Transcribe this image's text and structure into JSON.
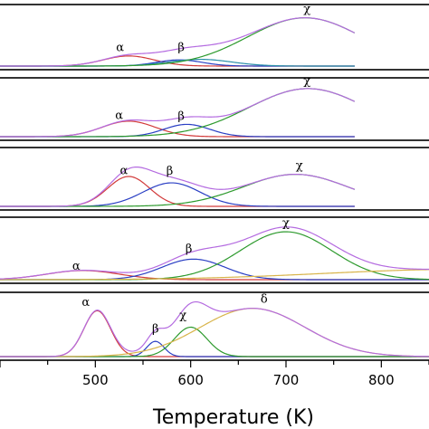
{
  "chart_data": {
    "type": "line",
    "xlabel": "Temperature (K)",
    "xlim": [
      400,
      850
    ],
    "x_ticks": [
      500,
      600,
      700,
      800
    ],
    "colors": {
      "sum": "#b46be0",
      "alpha": "#d23a3a",
      "beta": "#2a3fc4",
      "chi": "#2d9a2d",
      "delta": "#d8b44a",
      "teal": "#2a8fa8"
    },
    "panels": [
      {
        "x_end": 772,
        "components": [
          {
            "name": "α",
            "color_key": "alpha",
            "center": 535,
            "height": 0.18,
            "width": 27
          },
          {
            "name": "β",
            "color_key": "beta",
            "center": 588,
            "height": 0.11,
            "width": 24
          },
          {
            "name": "",
            "color_key": "teal",
            "center": 610,
            "height": 0.12,
            "width": 33
          },
          {
            "name": "χ",
            "color_key": "chi",
            "center": 720,
            "height": 0.86,
            "width": 60
          }
        ],
        "labels": [
          {
            "text": "α",
            "x": 526,
            "y": 0.33
          },
          {
            "text": "β",
            "x": 590,
            "y": 0.33
          },
          {
            "text": "χ",
            "x": 722,
            "y": 1.02
          }
        ]
      },
      {
        "x_end": 772,
        "components": [
          {
            "name": "α",
            "color_key": "alpha",
            "center": 535,
            "height": 0.29,
            "width": 28
          },
          {
            "name": "β",
            "color_key": "beta",
            "center": 596,
            "height": 0.23,
            "width": 24
          },
          {
            "name": "χ",
            "color_key": "chi",
            "center": 723,
            "height": 0.9,
            "width": 62
          }
        ],
        "labels": [
          {
            "text": "α",
            "x": 525,
            "y": 0.4
          },
          {
            "text": "β",
            "x": 590,
            "y": 0.38
          },
          {
            "text": "χ",
            "x": 722,
            "y": 1.04
          }
        ]
      },
      {
        "x_end": 772,
        "components": [
          {
            "name": "α",
            "color_key": "alpha",
            "center": 535,
            "height": 0.56,
            "width": 22
          },
          {
            "name": "β",
            "color_key": "beta",
            "center": 580,
            "height": 0.44,
            "width": 30
          },
          {
            "name": "χ",
            "color_key": "chi",
            "center": 710,
            "height": 0.6,
            "width": 55
          }
        ],
        "labels": [
          {
            "text": "α",
            "x": 530,
            "y": 0.67
          },
          {
            "text": "β",
            "x": 578,
            "y": 0.66
          },
          {
            "text": "χ",
            "x": 714,
            "y": 0.76
          }
        ]
      },
      {
        "x_end": 850,
        "components": [
          {
            "name": "α",
            "color_key": "alpha",
            "center": 487,
            "height": 0.16,
            "width": 38
          },
          {
            "name": "β",
            "color_key": "beta",
            "center": 603,
            "height": 0.36,
            "width": 33
          },
          {
            "name": "χ",
            "color_key": "chi",
            "center": 700,
            "height": 0.84,
            "width": 48
          },
          {
            "name": "",
            "color_key": "delta",
            "center": 880,
            "height": 0.18,
            "width": 140
          }
        ],
        "labels": [
          {
            "text": "α",
            "x": 480,
            "y": 0.24
          },
          {
            "text": "β",
            "x": 598,
            "y": 0.54
          },
          {
            "text": "χ",
            "x": 700,
            "y": 0.99
          }
        ]
      },
      {
        "x_end": 850,
        "components": [
          {
            "name": "α",
            "color_key": "alpha",
            "center": 502,
            "height": 0.78,
            "width": 14
          },
          {
            "name": "β",
            "color_key": "beta",
            "center": 563,
            "height": 0.26,
            "width": 9
          },
          {
            "name": "χ",
            "color_key": "chi",
            "center": 600,
            "height": 0.5,
            "width": 17
          },
          {
            "name": "δ",
            "color_key": "delta",
            "center": 665,
            "height": 0.82,
            "width": 55
          }
        ],
        "labels": [
          {
            "text": "α",
            "x": 490,
            "y": 0.92
          },
          {
            "text": "β",
            "x": 563,
            "y": 0.47
          },
          {
            "text": "χ",
            "x": 592,
            "y": 0.7
          },
          {
            "text": "δ",
            "x": 677,
            "y": 0.98
          }
        ]
      }
    ]
  }
}
